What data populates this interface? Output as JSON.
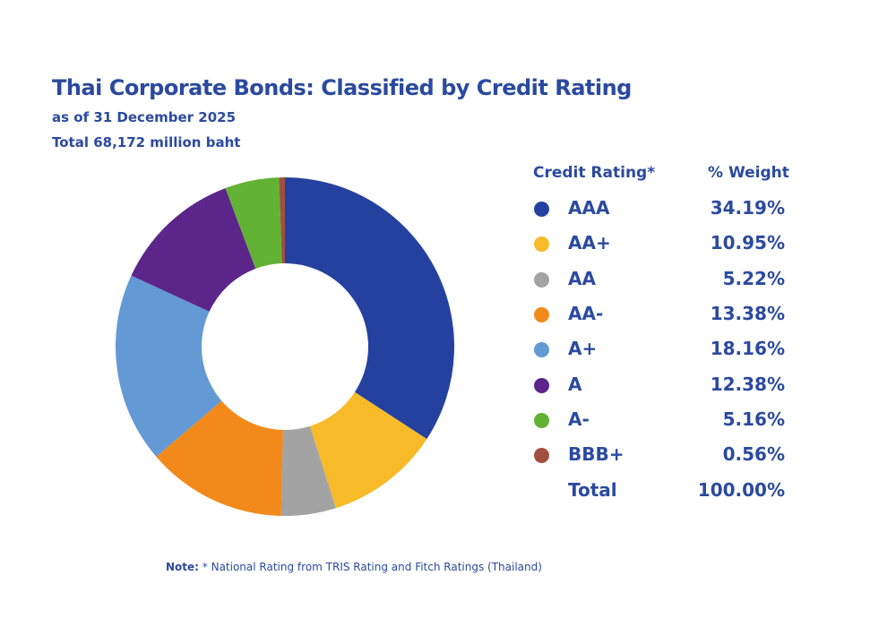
{
  "header": {
    "title": "Thai Corporate Bonds: Classified by Credit Rating",
    "as_of": "as of  31 December 2025",
    "total": "Total  68,172 million baht"
  },
  "legend": {
    "col1": "Credit Rating*",
    "col2": "% Weight",
    "total_label": "Total",
    "total_value": "100.00%"
  },
  "note": {
    "label": "Note:",
    "text": " * National Rating from TRIS Rating and Fitch Ratings (Thailand)"
  },
  "chart_data": {
    "type": "pie",
    "variant": "donut",
    "title": "Thai Corporate Bonds: Classified by Credit Rating",
    "categories": [
      "AAA",
      "AA+",
      "AA",
      "AA-",
      "A+",
      "A",
      "A-",
      "BBB+"
    ],
    "values": [
      34.19,
      10.95,
      5.22,
      13.38,
      18.16,
      12.38,
      5.16,
      0.56
    ],
    "labels": [
      "34.19%",
      "10.95%",
      "5.22%",
      "13.38%",
      "18.16%",
      "12.38%",
      "5.16%",
      "0.56%"
    ],
    "colors": [
      "#2541a0",
      "#f7bb2a",
      "#a3a3a3",
      "#f28a1b",
      "#6399d4",
      "#5b2589",
      "#62b234",
      "#a0503f"
    ],
    "legend_position": "right"
  }
}
